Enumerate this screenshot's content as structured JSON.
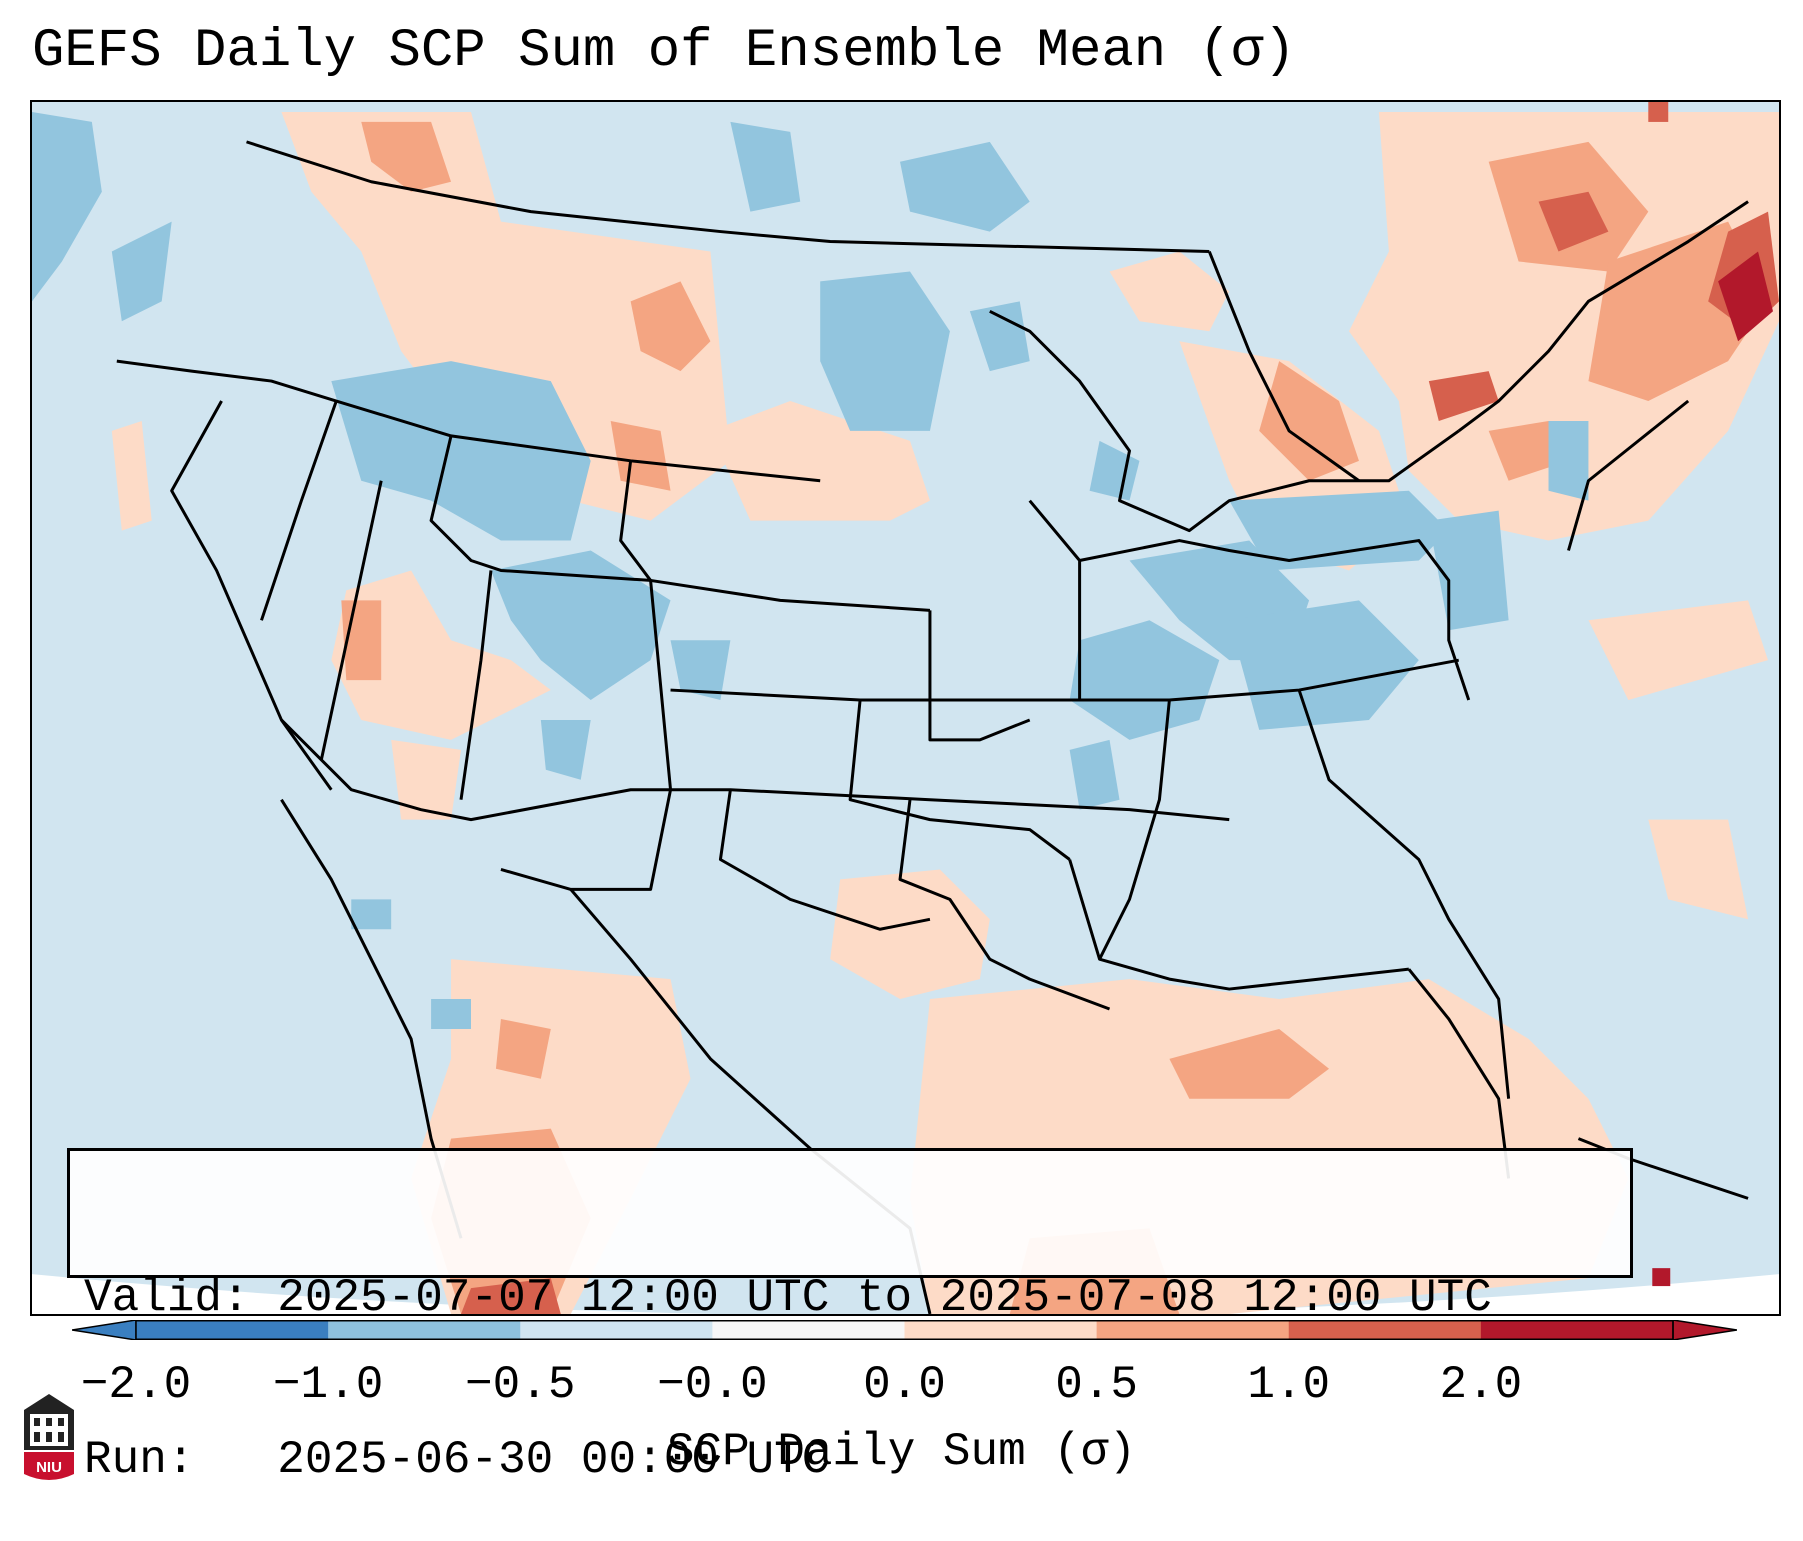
{
  "title": "GEFS Daily SCP Sum of Ensemble Mean (σ)",
  "info": {
    "valid": "Valid: 2025-07-07 12:00 UTC to 2025-07-08 12:00 UTC",
    "run": "Run:   2025-06-30 00:00 UTC"
  },
  "colorbar": {
    "label": "SCP Daily Sum (σ)",
    "ticks": [
      "−2.0",
      "−1.0",
      "−0.5",
      "−0.0",
      "0.0",
      "0.5",
      "1.0",
      "2.0"
    ],
    "colors": [
      "#3a7fc0",
      "#8fc1de",
      "#d1e5f0",
      "#f7f7f7",
      "#fddbc7",
      "#f4a582",
      "#d6604d",
      "#b2182b"
    ]
  },
  "logo": {
    "text": "NIU",
    "color": "#c8102e"
  },
  "icons": {
    "logo": "niu-seal-icon"
  }
}
